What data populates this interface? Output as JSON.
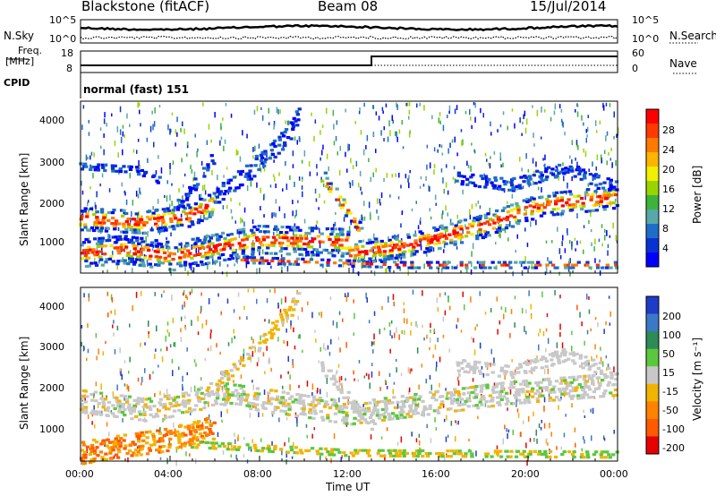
{
  "header": {
    "station": "Blackstone (fitACF)",
    "beam": "Beam 08",
    "date": "15/Jul/2014"
  },
  "panels": {
    "nsky_label": "N.Sky",
    "nsearch_label": "N.Search",
    "freq_label_line1": "Freq.",
    "freq_label_line2": "[MHz]",
    "nave_label": "Nave",
    "cpid_label": "CPID",
    "cpid_text": "normal (fast) 151",
    "noise_ticks_left": [
      "10^5",
      "10^0"
    ],
    "noise_ticks_right": [
      "10^5",
      "10^0"
    ],
    "freq_ticks": [
      "18",
      "8"
    ],
    "nave_ticks": [
      "60",
      "0"
    ]
  },
  "chart_data": [
    {
      "type": "heatmap",
      "name": "power",
      "ylabel": "Slant Range [km]",
      "yticks": [
        "4000",
        "3000",
        "2000",
        "1000"
      ],
      "ylim": [
        200,
        4500
      ],
      "colorbar_label": "Power [dB]",
      "colorbar_ticks": [
        "28",
        "24",
        "20",
        "16",
        "12",
        "8",
        "4"
      ],
      "colors": [
        "#ff0000",
        "#ff3a00",
        "#ff7a00",
        "#ffb400",
        "#f0f000",
        "#9ad400",
        "#3cb43c",
        "#58a8a8",
        "#1e6ec8",
        "#0a32d2",
        "#0000ff"
      ]
    },
    {
      "type": "heatmap",
      "name": "velocity",
      "ylabel": "Slant Range [km]",
      "yticks": [
        "4000",
        "3000",
        "2000",
        "1000"
      ],
      "ylim": [
        200,
        4500
      ],
      "colorbar_label": "Velocity [m s⁻¹]",
      "colorbar_ticks": [
        "200",
        "100",
        "50",
        "15",
        "-15",
        "-50",
        "-100",
        "-200"
      ],
      "colors": [
        "#1e3cc8",
        "#3c78c8",
        "#2e8b57",
        "#5ac83c",
        "#c8c8c8",
        "#f0b400",
        "#ff8200",
        "#ff5a00",
        "#e60000"
      ]
    }
  ],
  "xaxis": {
    "label": "Time UT",
    "ticks": [
      "00:00",
      "04:00",
      "08:00",
      "12:00",
      "16:00",
      "20:00",
      "00:00"
    ]
  }
}
